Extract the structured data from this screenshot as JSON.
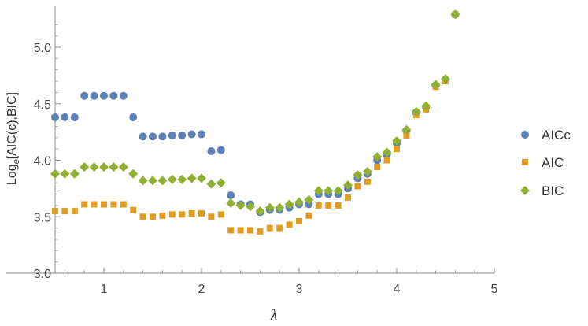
{
  "chart_data": {
    "type": "scatter",
    "title": "",
    "xlabel": "λ",
    "ylabel_parts": {
      "base": "Log",
      "sub": "e",
      "rest": "[AIC(c),BIC]"
    },
    "xlim": [
      0.5,
      5.0
    ],
    "ylim": [
      3.0,
      5.3
    ],
    "xticks": [
      1,
      2,
      3,
      4,
      5
    ],
    "yticks": [
      3.0,
      3.5,
      4.0,
      4.5,
      5.0
    ],
    "xtick_labels": [
      "1",
      "2",
      "3",
      "4",
      "5"
    ],
    "ytick_labels": [
      "3.0",
      "3.5",
      "4.0",
      "4.5",
      "5.0"
    ],
    "grid": false,
    "legend_position": "right",
    "series": [
      {
        "name": "AICc",
        "color": "#5e81b5",
        "marker": "circle",
        "points": [
          [
            0.5,
            4.38
          ],
          [
            0.6,
            4.38
          ],
          [
            0.7,
            4.38
          ],
          [
            0.8,
            4.57
          ],
          [
            0.9,
            4.57
          ],
          [
            1.0,
            4.57
          ],
          [
            1.1,
            4.57
          ],
          [
            1.2,
            4.57
          ],
          [
            1.3,
            4.38
          ],
          [
            1.4,
            4.21
          ],
          [
            1.5,
            4.21
          ],
          [
            1.6,
            4.21
          ],
          [
            1.7,
            4.22
          ],
          [
            1.8,
            4.22
          ],
          [
            1.9,
            4.23
          ],
          [
            2.0,
            4.23
          ],
          [
            2.1,
            4.08
          ],
          [
            2.2,
            4.09
          ],
          [
            2.3,
            3.69
          ],
          [
            2.4,
            3.61
          ],
          [
            2.5,
            3.61
          ],
          [
            2.6,
            3.54
          ],
          [
            2.7,
            3.56
          ],
          [
            2.8,
            3.56
          ],
          [
            2.9,
            3.58
          ],
          [
            3.0,
            3.61
          ],
          [
            3.1,
            3.61
          ],
          [
            3.2,
            3.7
          ],
          [
            3.3,
            3.7
          ],
          [
            3.4,
            3.7
          ],
          [
            3.5,
            3.75
          ],
          [
            3.6,
            3.84
          ],
          [
            3.7,
            3.88
          ],
          [
            3.8,
            4.0
          ],
          [
            3.9,
            4.05
          ],
          [
            4.0,
            4.15
          ],
          [
            4.1,
            4.26
          ],
          [
            4.2,
            4.42
          ],
          [
            4.3,
            4.47
          ],
          [
            4.4,
            4.66
          ],
          [
            4.5,
            4.71
          ],
          [
            4.6,
            5.29
          ]
        ]
      },
      {
        "name": "AIC",
        "color": "#e19c24",
        "marker": "square",
        "points": [
          [
            0.5,
            3.55
          ],
          [
            0.6,
            3.55
          ],
          [
            0.7,
            3.55
          ],
          [
            0.8,
            3.61
          ],
          [
            0.9,
            3.61
          ],
          [
            1.0,
            3.61
          ],
          [
            1.1,
            3.61
          ],
          [
            1.2,
            3.61
          ],
          [
            1.3,
            3.56
          ],
          [
            1.4,
            3.5
          ],
          [
            1.5,
            3.5
          ],
          [
            1.6,
            3.51
          ],
          [
            1.7,
            3.52
          ],
          [
            1.8,
            3.52
          ],
          [
            1.9,
            3.53
          ],
          [
            2.0,
            3.53
          ],
          [
            2.1,
            3.5
          ],
          [
            2.2,
            3.52
          ],
          [
            2.3,
            3.38
          ],
          [
            2.4,
            3.38
          ],
          [
            2.5,
            3.38
          ],
          [
            2.6,
            3.37
          ],
          [
            2.7,
            3.4
          ],
          [
            2.8,
            3.4
          ],
          [
            2.9,
            3.43
          ],
          [
            3.0,
            3.46
          ],
          [
            3.1,
            3.51
          ],
          [
            3.2,
            3.6
          ],
          [
            3.3,
            3.6
          ],
          [
            3.4,
            3.6
          ],
          [
            3.5,
            3.67
          ],
          [
            3.6,
            3.77
          ],
          [
            3.7,
            3.81
          ],
          [
            3.8,
            3.94
          ],
          [
            3.9,
            4.0
          ],
          [
            4.0,
            4.1
          ],
          [
            4.1,
            4.22
          ],
          [
            4.2,
            4.4
          ],
          [
            4.3,
            4.45
          ],
          [
            4.4,
            4.65
          ],
          [
            4.5,
            4.7
          ],
          [
            4.6,
            5.29
          ]
        ]
      },
      {
        "name": "BIC",
        "color": "#8fb032",
        "marker": "diamond",
        "points": [
          [
            0.5,
            3.88
          ],
          [
            0.6,
            3.88
          ],
          [
            0.7,
            3.88
          ],
          [
            0.8,
            3.94
          ],
          [
            0.9,
            3.94
          ],
          [
            1.0,
            3.94
          ],
          [
            1.1,
            3.94
          ],
          [
            1.2,
            3.94
          ],
          [
            1.3,
            3.88
          ],
          [
            1.4,
            3.82
          ],
          [
            1.5,
            3.82
          ],
          [
            1.6,
            3.82
          ],
          [
            1.7,
            3.83
          ],
          [
            1.8,
            3.83
          ],
          [
            1.9,
            3.84
          ],
          [
            2.0,
            3.84
          ],
          [
            2.1,
            3.79
          ],
          [
            2.2,
            3.8
          ],
          [
            2.3,
            3.62
          ],
          [
            2.4,
            3.6
          ],
          [
            2.5,
            3.59
          ],
          [
            2.6,
            3.55
          ],
          [
            2.7,
            3.58
          ],
          [
            2.8,
            3.58
          ],
          [
            2.9,
            3.61
          ],
          [
            3.0,
            3.63
          ],
          [
            3.1,
            3.65
          ],
          [
            3.2,
            3.73
          ],
          [
            3.3,
            3.73
          ],
          [
            3.4,
            3.73
          ],
          [
            3.5,
            3.78
          ],
          [
            3.6,
            3.87
          ],
          [
            3.7,
            3.9
          ],
          [
            3.8,
            4.03
          ],
          [
            3.9,
            4.07
          ],
          [
            4.0,
            4.17
          ],
          [
            4.1,
            4.27
          ],
          [
            4.2,
            4.43
          ],
          [
            4.3,
            4.48
          ],
          [
            4.4,
            4.67
          ],
          [
            4.5,
            4.72
          ],
          [
            4.6,
            5.29
          ]
        ]
      }
    ]
  }
}
